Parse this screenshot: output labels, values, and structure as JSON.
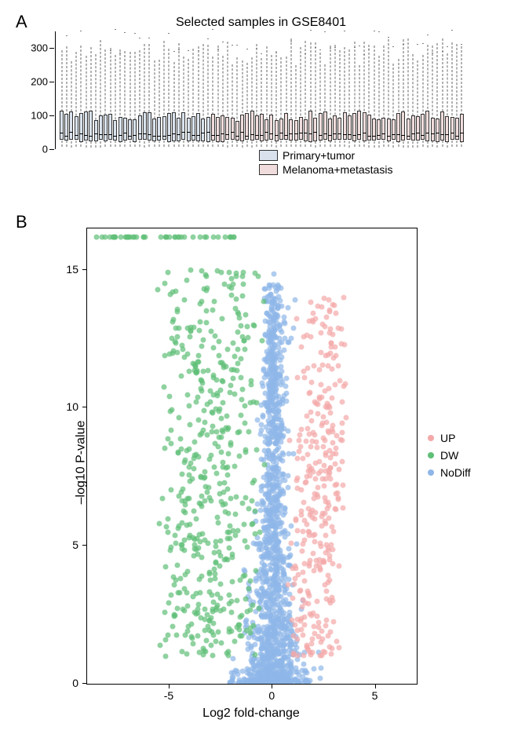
{
  "panelA": {
    "label": "A",
    "title": "Selected samples in GSE8401",
    "ylim": [
      0,
      350
    ],
    "yticks": [
      0,
      100,
      200,
      300
    ],
    "legend": [
      {
        "label": "Primary+tumor",
        "color": "#d9e2ec"
      },
      {
        "label": "Melanoma+metastasis",
        "color": "#f0dcdc"
      }
    ],
    "n_group1": 31,
    "n_group2": 52,
    "group1_color": "#d9e2ec",
    "group2_color": "#f0dcdc",
    "box_q1": 25,
    "box_median": 45,
    "box_q3": 100,
    "whisker_low": 5,
    "whisker_high_min": 250,
    "whisker_high_max": 330,
    "outlier_min": 280,
    "outlier_max": 360
  },
  "panelB": {
    "label": "B",
    "xlabel": "Log2 fold-change",
    "ylabel": "–log10 P-value",
    "xlim": [
      -9,
      7
    ],
    "ylim": [
      0,
      16.5
    ],
    "xticks": [
      -5,
      0,
      5
    ],
    "yticks": [
      0,
      5,
      10,
      15
    ],
    "colors": {
      "UP": "#f4a8a8",
      "DW": "#5fbf77",
      "NoDiff": "#8fb6e8"
    },
    "legend": [
      {
        "label": "UP",
        "key": "UP"
      },
      {
        "label": "DW",
        "key": "DW"
      },
      {
        "label": "NoDiff",
        "key": "NoDiff"
      }
    ],
    "n_points": {
      "UP": 320,
      "DW": 480,
      "NoDiff": 1400,
      "DW_cap": 45
    },
    "dw_cap_y": 16.2,
    "dw_cap_xrange": [
      -8.8,
      -1.8
    ]
  }
}
